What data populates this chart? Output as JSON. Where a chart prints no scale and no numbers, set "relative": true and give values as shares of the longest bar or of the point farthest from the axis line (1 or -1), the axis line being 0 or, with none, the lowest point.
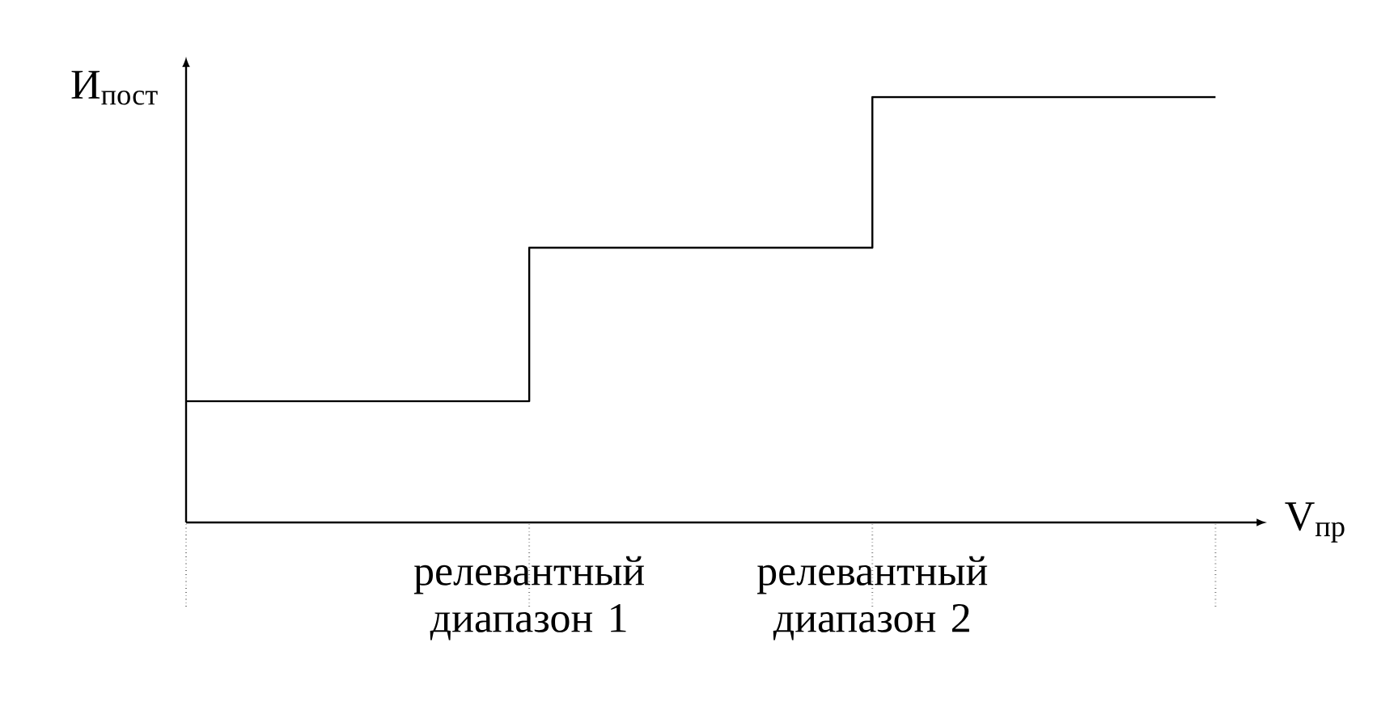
{
  "chart_data": {
    "type": "step",
    "relative": true,
    "xlabel": "V$_{пр}$",
    "ylabel": "И$_{пост}$",
    "categories": [
      null,
      "релевантный диапазон 1",
      "релевантный диапазон 2",
      null
    ],
    "values": [
      0.285,
      0.646,
      1,
      1
    ],
    "color": "#000000"
  }
}
